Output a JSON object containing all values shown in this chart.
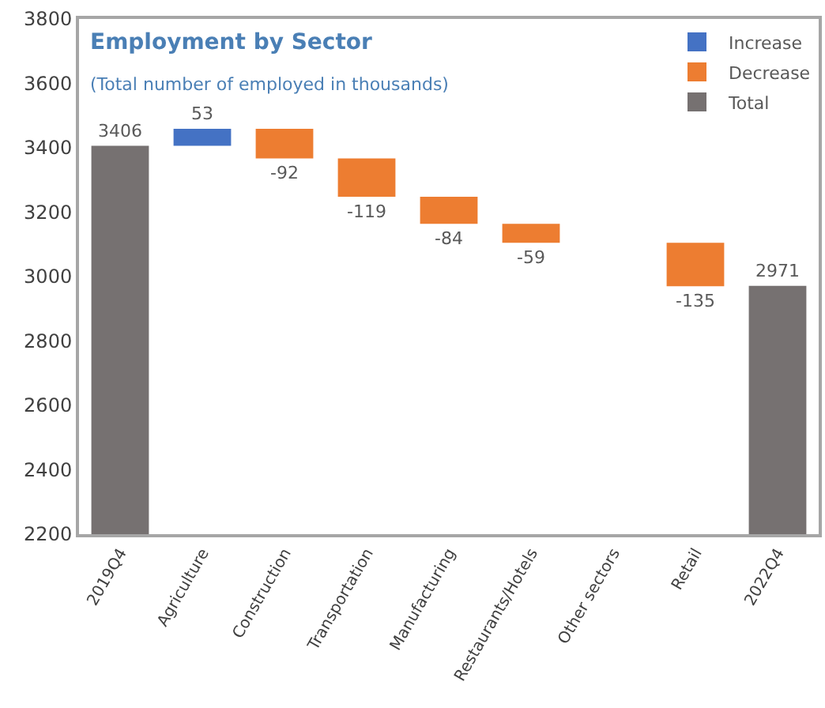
{
  "chart_data": {
    "type": "bar",
    "title": "Employment by Sector",
    "subtitle": "(Total number of employed in thousands)",
    "categories": [
      "2019Q4",
      "Agriculture",
      "Construction",
      "Transportation",
      "Manufacturing",
      "Restaurants/Hotels",
      "Other sectors",
      "Retail",
      "2022Q4"
    ],
    "series": [
      {
        "name": "Increase",
        "color": "#4472c4",
        "values": [
          null,
          53,
          null,
          null,
          null,
          null,
          null,
          null,
          null
        ],
        "base": [
          null,
          3406,
          null,
          null,
          null,
          null,
          null,
          null,
          null
        ],
        "value_labels": [
          null,
          "53",
          null,
          null,
          null,
          null,
          null,
          null,
          null
        ]
      },
      {
        "name": "Decrease",
        "color": "#ed7d31",
        "values": [
          null,
          null,
          -92,
          -119,
          -84,
          -59,
          null,
          -135,
          null
        ],
        "base": [
          null,
          null,
          3459,
          3367,
          3248,
          3164,
          null,
          3105,
          null
        ],
        "value_labels": [
          null,
          null,
          "-92",
          "-119",
          "-84",
          "-59",
          null,
          "-135",
          null
        ]
      },
      {
        "name": "Total",
        "color": "#767171",
        "values": [
          3406,
          null,
          null,
          null,
          null,
          null,
          null,
          null,
          2971
        ],
        "value_labels": [
          "3406",
          null,
          null,
          null,
          null,
          null,
          null,
          null,
          "2971"
        ]
      }
    ],
    "ylim": [
      2200,
      3800
    ],
    "yticks": [
      2200,
      2400,
      2600,
      2800,
      3000,
      3200,
      3400,
      3600,
      3800
    ],
    "legend": "top right"
  }
}
